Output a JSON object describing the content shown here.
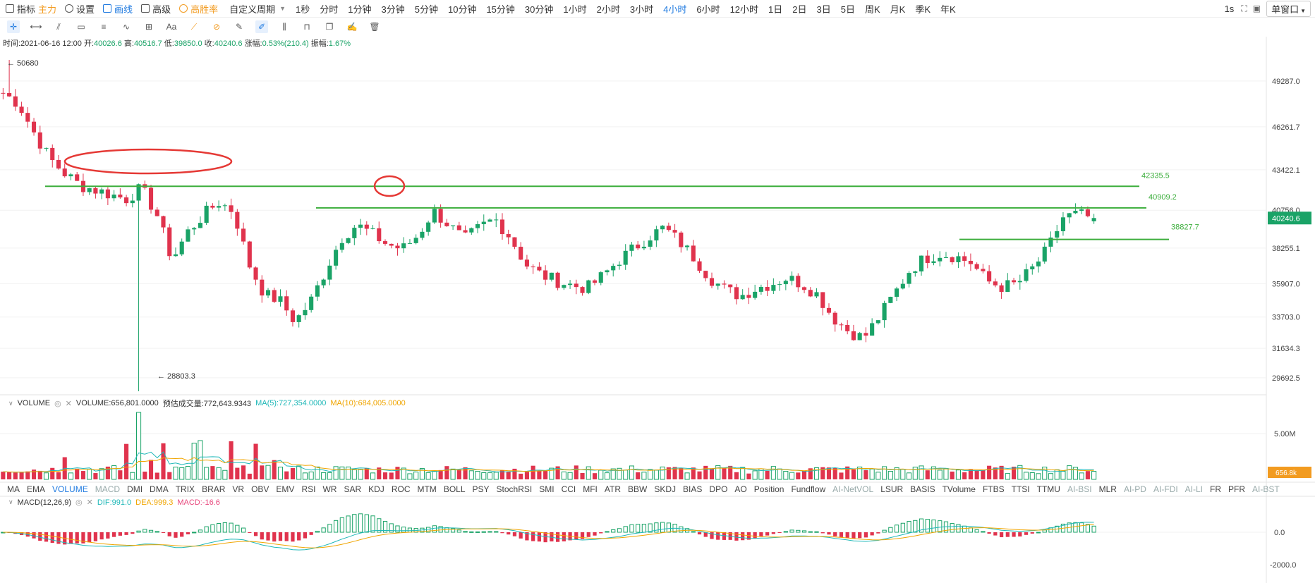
{
  "topbar": {
    "indicator_label": "指标",
    "indicator_tag": "主力",
    "settings_label": "设置",
    "draw_label": "画线",
    "advanced_label": "高级",
    "winrate_label": "高胜率",
    "custom_period_label": "自定义周期",
    "periods": [
      "1秒",
      "分时",
      "1分钟",
      "3分钟",
      "5分钟",
      "10分钟",
      "15分钟",
      "30分钟",
      "1小时",
      "2小时",
      "3小时",
      "4小时",
      "6小时",
      "12小时",
      "1日",
      "2日",
      "3日",
      "5日",
      "周K",
      "月K",
      "季K",
      "年K"
    ],
    "active_period": "4小时",
    "interval": "1s",
    "window_label": "单窗口"
  },
  "info_bar": {
    "time": "时间:2021-06-16 12:00",
    "open_label": "开:",
    "open": "40026.6",
    "high_label": "高:",
    "high": "40516.7",
    "low_label": "低:",
    "low": "39850.0",
    "close_label": "收:",
    "close": "40240.6",
    "change_label": "涨幅:",
    "change": "0.53%(210.4)",
    "amplitude_label": "振幅:",
    "amplitude": "1.67%"
  },
  "price_axis": [
    "49287.0",
    "46261.7",
    "43422.1",
    "40756.0",
    "38255.1",
    "35907.0",
    "33703.0",
    "31634.3",
    "29692.5"
  ],
  "current_price": "40240.6",
  "annotations": {
    "high_mark": "50680",
    "low_mark": "28803.3",
    "line1": "42335.5",
    "line2": "40909.2",
    "line3": "38827.7"
  },
  "volume_panel": {
    "name": "VOLUME",
    "volume": "VOLUME:656,801.0000",
    "estimate": "预估成交量:772,643.9343",
    "ma5": "MA(5):727,354.0000",
    "ma10": "MA(10):684,005.0000",
    "axis_label": "5.00M",
    "current": "656.8k"
  },
  "indicator_tabs": [
    "MA",
    "EMA",
    "VOLUME",
    "MACD",
    "DMI",
    "DMA",
    "TRIX",
    "BRAR",
    "VR",
    "OBV",
    "EMV",
    "RSI",
    "WR",
    "SAR",
    "KDJ",
    "ROC",
    "MTM",
    "BOLL",
    "PSY",
    "StochRSI",
    "SMI",
    "CCI",
    "MFI",
    "ATR",
    "BBW",
    "SKDJ",
    "BIAS",
    "DPO",
    "AO",
    "Position",
    "Fundflow",
    "AI-NetVOL",
    "LSUR",
    "BASIS",
    "TVolume",
    "FTBS",
    "TTSI",
    "TTMU",
    "AI-BSI",
    "MLR",
    "AI-PD",
    "AI-FDI",
    "AI-LI",
    "FR",
    "PFR",
    "AI-BST"
  ],
  "active_tab": "VOLUME",
  "muted_tabs": [
    "MACD",
    "AI-NetVOL",
    "AI-BSI",
    "AI-PD",
    "AI-FDI",
    "AI-LI",
    "AI-BST"
  ],
  "macd_panel": {
    "name": "MACD(12,26,9)",
    "dif": "DIF:991.0",
    "dea": "DEA:999.3",
    "macd": "MACD:-16.6",
    "axis": [
      "0.0",
      "-2000.0"
    ]
  },
  "colors": {
    "up": "#1aa367",
    "down": "#e0334d",
    "accent": "#1f7ae0",
    "line_green": "#3cae3c",
    "ellipse": "#e53935"
  },
  "icons": [
    "indicator-icon",
    "settings-icon",
    "draw-icon",
    "advanced-icon",
    "winrate-icon",
    "crosshair-icon",
    "line-icon",
    "trend-icon",
    "rect-icon",
    "parallel-icon",
    "wave-icon",
    "measure-icon",
    "text-icon",
    "fib-icon",
    "magnet-icon",
    "pen-icon",
    "brush-icon",
    "bars-icon",
    "lock-icon",
    "copy-icon",
    "edit-icon",
    "delete-icon"
  ],
  "chart_data": {
    "type": "candlestick",
    "period": "4小时",
    "last_bar": {
      "time": "2021-06-16 12:00",
      "open": 40026.6,
      "high": 40516.7,
      "low": 39850.0,
      "close": 40240.6
    },
    "extremes": {
      "high": 50680,
      "low": 28803.3
    },
    "horizontal_lines": [
      42335.5,
      40909.2,
      38827.7
    ],
    "price_ticks": [
      49287.0,
      46261.7,
      43422.1,
      40756.0,
      38255.1,
      35907.0,
      33703.0,
      31634.3,
      29692.5
    ],
    "close_path": [
      48500,
      47800,
      45900,
      44200,
      43200,
      42400,
      42100,
      41800,
      41500,
      42200,
      40500,
      37500,
      39300,
      40400,
      41300,
      40700,
      37200,
      35200,
      34800,
      33400,
      34700,
      36800,
      38900,
      39800,
      39200,
      38500,
      38200,
      39100,
      40700,
      39800,
      38800,
      39600,
      40200,
      39000,
      37200,
      36500,
      36100,
      35800,
      35600,
      36400,
      37400,
      38200,
      39000,
      39600,
      38700,
      37600,
      36300,
      35500,
      35100,
      35600,
      35900,
      36300,
      35900,
      35200,
      33700,
      32800,
      32300,
      33700,
      35200,
      36800,
      37600,
      37900,
      37700,
      37300,
      36100,
      35700,
      35900,
      36900,
      38200,
      40300,
      40500,
      40200
    ]
  }
}
